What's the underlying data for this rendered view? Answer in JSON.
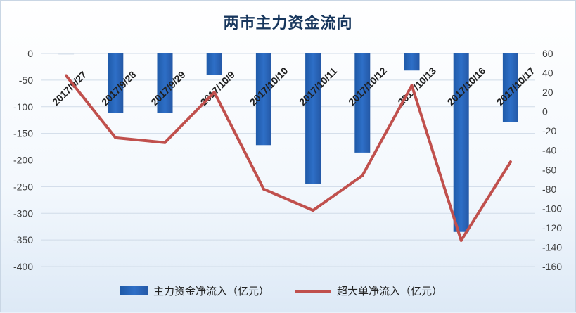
{
  "chart_data": {
    "type": "bar",
    "title": "两市主力资金流向",
    "categories": [
      "2017/9/27",
      "2017/9/28",
      "2017/9/29",
      "2017/10/9",
      "2017/10/10",
      "2017/10/11",
      "2017/10/12",
      "2017/10/13",
      "2017/10/16",
      "2017/10/17"
    ],
    "series": [
      {
        "name": "主力资金净流入（亿元）",
        "type": "bar",
        "axis": "left",
        "color": "#2e6fc7",
        "values": [
          -2,
          -112,
          -112,
          -40,
          -172,
          -245,
          -186,
          -32,
          -335,
          -129
        ]
      },
      {
        "name": "超大单净流入（亿元）",
        "type": "line",
        "axis": "right",
        "color": "#c0504d",
        "values": [
          37,
          -27,
          -32,
          20,
          -80,
          -102,
          -66,
          27,
          -133,
          -52
        ]
      }
    ],
    "y_left": {
      "min": -400,
      "max": 0,
      "ticks": [
        0,
        -50,
        -100,
        -150,
        -200,
        -250,
        -300,
        -350,
        -400
      ]
    },
    "y_right": {
      "min": -160,
      "max": 60,
      "ticks": [
        60,
        40,
        20,
        0,
        -20,
        -40,
        -60,
        -80,
        -100,
        -120,
        -140,
        -160
      ]
    },
    "grid": true,
    "legend_position": "bottom"
  }
}
